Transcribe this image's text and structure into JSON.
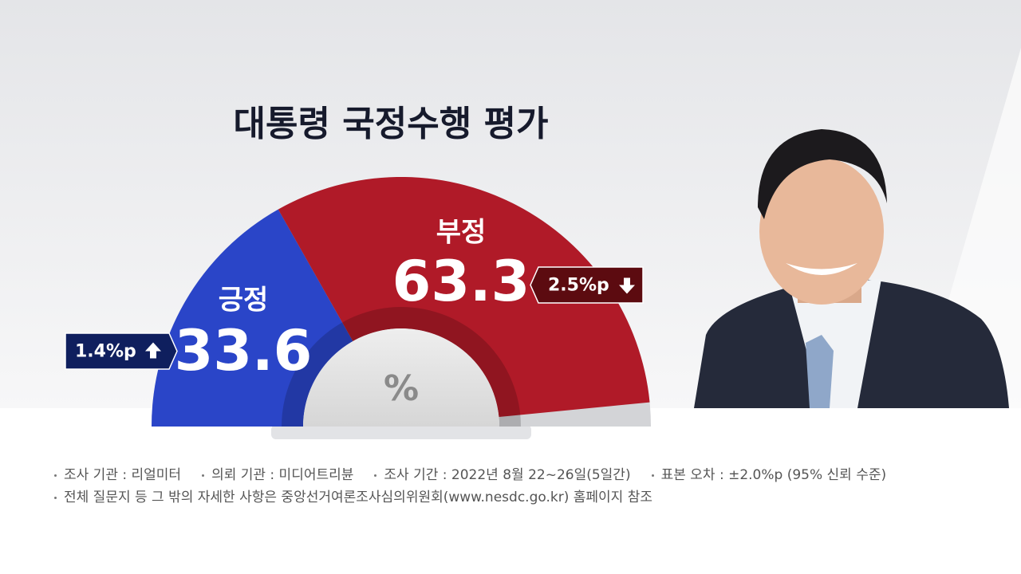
{
  "chart_data": {
    "type": "semicircle",
    "title": "대통령 국정수행 평가",
    "unit": "%",
    "categories": [
      "긍정",
      "부정"
    ],
    "values": [
      33.6,
      63.3
    ],
    "colors": [
      "#2a45c8",
      "#b01a28"
    ],
    "changes": [
      1.4,
      2.5
    ],
    "change_labels": [
      "1.4%p",
      "2.5%p"
    ],
    "change_directions": [
      "up",
      "down"
    ],
    "change_colors": [
      "#0f1f5e",
      "#5c0b10"
    ],
    "notes": [
      [
        "조사 기관 : 리얼미터",
        "의뢰 기관 : 미디어트리뷴",
        "조사 기간 : 2022년 8월 22~26일(5일간)",
        "표본 오차 : ±2.0%p (95% 신뢰 수준)"
      ],
      [
        "전체 질문지 등 그 밖의 자세한 사항은 중앙선거여론조사심의위원회(www.nesdc.go.kr) 홈페이지 참조"
      ]
    ]
  }
}
